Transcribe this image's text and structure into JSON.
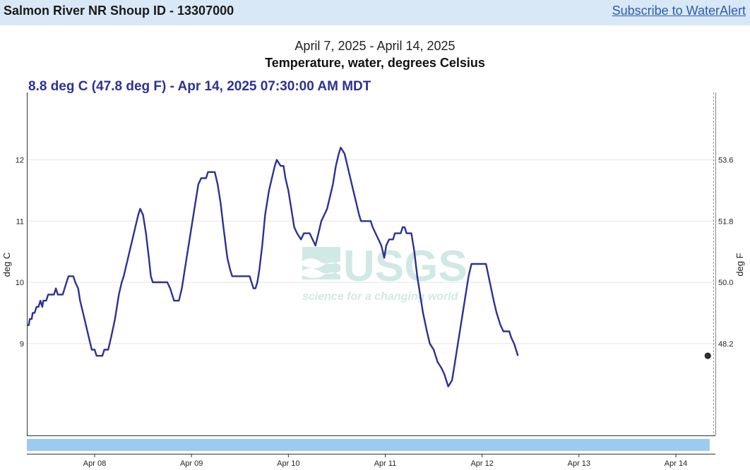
{
  "header": {
    "site_title": "Salmon River NR Shoup ID - 13307000",
    "subscribe_link": "Subscribe to WaterAlert"
  },
  "chart_header": {
    "date_range": "April 7, 2025 - April 14, 2025",
    "parameter": "Temperature, water, degrees Celsius",
    "current_reading": "8.8 deg C (47.8 deg F) - Apr 14, 2025 07:30:00 AM MDT"
  },
  "watermark": {
    "logo_text": "USGS",
    "tagline": "science for a changing world"
  },
  "colors": {
    "series": "#2e3192",
    "header_bg": "#d9e8f6",
    "brush": "#9ccbf2"
  },
  "chart_data": {
    "type": "line",
    "title": "Temperature, water, degrees Celsius",
    "subtitle": "April 7, 2025 - April 14, 2025",
    "ylabel": "deg C",
    "ylabel_right": "deg F",
    "y_ticks": [
      9,
      10,
      11,
      12
    ],
    "y_ticks_right": [
      "48.2",
      "50.0",
      "51.8",
      "53.6"
    ],
    "ylim": [
      7.5,
      13.1
    ],
    "x_ticks": [
      "Apr 08",
      "Apr 09",
      "Apr 10",
      "Apr 11",
      "Apr 12",
      "Apr 13",
      "Apr 14"
    ],
    "xlim_days": [
      7.3,
      14.35
    ],
    "grid": true,
    "series": [
      {
        "points": [
          [
            7.3,
            9.3
          ],
          [
            7.32,
            9.3
          ],
          [
            7.33,
            9.4
          ],
          [
            7.35,
            9.4
          ],
          [
            7.36,
            9.5
          ],
          [
            7.38,
            9.5
          ],
          [
            7.4,
            9.6
          ],
          [
            7.42,
            9.6
          ],
          [
            7.44,
            9.7
          ],
          [
            7.46,
            9.6
          ],
          [
            7.47,
            9.7
          ],
          [
            7.5,
            9.7
          ],
          [
            7.52,
            9.8
          ],
          [
            7.58,
            9.8
          ],
          [
            7.6,
            9.9
          ],
          [
            7.62,
            9.8
          ],
          [
            7.67,
            9.8
          ],
          [
            7.69,
            9.9
          ],
          [
            7.71,
            10.0
          ],
          [
            7.73,
            10.1
          ],
          [
            7.78,
            10.1
          ],
          [
            7.8,
            10.0
          ],
          [
            7.83,
            9.9
          ],
          [
            7.85,
            9.7
          ],
          [
            7.88,
            9.5
          ],
          [
            7.91,
            9.3
          ],
          [
            7.94,
            9.1
          ],
          [
            7.97,
            8.9
          ],
          [
            8.0,
            8.9
          ],
          [
            8.02,
            8.8
          ],
          [
            8.08,
            8.8
          ],
          [
            8.1,
            8.9
          ],
          [
            8.14,
            8.9
          ],
          [
            8.17,
            9.1
          ],
          [
            8.21,
            9.4
          ],
          [
            8.25,
            9.8
          ],
          [
            8.28,
            10.0
          ],
          [
            8.3,
            10.1
          ],
          [
            8.33,
            10.3
          ],
          [
            8.36,
            10.5
          ],
          [
            8.39,
            10.7
          ],
          [
            8.42,
            10.9
          ],
          [
            8.45,
            11.1
          ],
          [
            8.47,
            11.2
          ],
          [
            8.5,
            11.1
          ],
          [
            8.53,
            10.8
          ],
          [
            8.56,
            10.4
          ],
          [
            8.58,
            10.1
          ],
          [
            8.6,
            10.0
          ],
          [
            8.75,
            10.0
          ],
          [
            8.78,
            9.9
          ],
          [
            8.8,
            9.8
          ],
          [
            8.82,
            9.7
          ],
          [
            8.87,
            9.7
          ],
          [
            8.9,
            9.9
          ],
          [
            8.94,
            10.3
          ],
          [
            8.98,
            10.7
          ],
          [
            9.03,
            11.2
          ],
          [
            9.07,
            11.6
          ],
          [
            9.1,
            11.7
          ],
          [
            9.15,
            11.7
          ],
          [
            9.17,
            11.8
          ],
          [
            9.24,
            11.8
          ],
          [
            9.27,
            11.6
          ],
          [
            9.3,
            11.3
          ],
          [
            9.33,
            10.9
          ],
          [
            9.37,
            10.4
          ],
          [
            9.4,
            10.2
          ],
          [
            9.42,
            10.1
          ],
          [
            9.6,
            10.1
          ],
          [
            9.62,
            10.0
          ],
          [
            9.64,
            9.9
          ],
          [
            9.66,
            9.9
          ],
          [
            9.68,
            10.0
          ],
          [
            9.7,
            10.2
          ],
          [
            9.73,
            10.6
          ],
          [
            9.76,
            11.1
          ],
          [
            9.8,
            11.5
          ],
          [
            9.83,
            11.7
          ],
          [
            9.86,
            11.9
          ],
          [
            9.88,
            12.0
          ],
          [
            9.92,
            11.9
          ],
          [
            9.95,
            11.9
          ],
          [
            9.97,
            11.7
          ],
          [
            10.0,
            11.5
          ],
          [
            10.03,
            11.2
          ],
          [
            10.06,
            10.9
          ],
          [
            10.09,
            10.8
          ],
          [
            10.13,
            10.7
          ],
          [
            10.16,
            10.8
          ],
          [
            10.22,
            10.8
          ],
          [
            10.25,
            10.7
          ],
          [
            10.28,
            10.6
          ],
          [
            10.31,
            10.8
          ],
          [
            10.34,
            11.0
          ],
          [
            10.37,
            11.1
          ],
          [
            10.4,
            11.2
          ],
          [
            10.43,
            11.4
          ],
          [
            10.46,
            11.6
          ],
          [
            10.49,
            11.9
          ],
          [
            10.52,
            12.1
          ],
          [
            10.54,
            12.2
          ],
          [
            10.58,
            12.1
          ],
          [
            10.61,
            11.9
          ],
          [
            10.64,
            11.7
          ],
          [
            10.67,
            11.5
          ],
          [
            10.7,
            11.3
          ],
          [
            10.73,
            11.1
          ],
          [
            10.75,
            11.0
          ],
          [
            10.85,
            11.0
          ],
          [
            10.87,
            10.9
          ],
          [
            10.9,
            10.8
          ],
          [
            10.93,
            10.7
          ],
          [
            10.96,
            10.6
          ],
          [
            10.99,
            10.4
          ],
          [
            11.01,
            10.6
          ],
          [
            11.04,
            10.7
          ],
          [
            11.08,
            10.7
          ],
          [
            11.1,
            10.8
          ],
          [
            11.16,
            10.8
          ],
          [
            11.18,
            10.9
          ],
          [
            11.2,
            10.9
          ],
          [
            11.22,
            10.8
          ],
          [
            11.27,
            10.8
          ],
          [
            11.3,
            10.5
          ],
          [
            11.33,
            10.1
          ],
          [
            11.36,
            9.8
          ],
          [
            11.39,
            9.5
          ],
          [
            11.43,
            9.2
          ],
          [
            11.46,
            9.0
          ],
          [
            11.5,
            8.9
          ],
          [
            11.54,
            8.7
          ],
          [
            11.58,
            8.6
          ],
          [
            11.61,
            8.5
          ],
          [
            11.63,
            8.4
          ],
          [
            11.65,
            8.3
          ],
          [
            11.69,
            8.4
          ],
          [
            11.72,
            8.7
          ],
          [
            11.75,
            9.0
          ],
          [
            11.79,
            9.4
          ],
          [
            11.82,
            9.7
          ],
          [
            11.86,
            10.1
          ],
          [
            11.89,
            10.3
          ],
          [
            12.04,
            10.3
          ],
          [
            12.08,
            10.0
          ],
          [
            12.12,
            9.7
          ],
          [
            12.15,
            9.5
          ],
          [
            12.19,
            9.3
          ],
          [
            12.22,
            9.2
          ],
          [
            12.28,
            9.2
          ],
          [
            12.3,
            9.1
          ],
          [
            12.33,
            9.0
          ],
          [
            12.35,
            8.9
          ],
          [
            12.37,
            8.8
          ]
        ]
      }
    ],
    "current_point": [
      14.33,
      8.8
    ]
  }
}
